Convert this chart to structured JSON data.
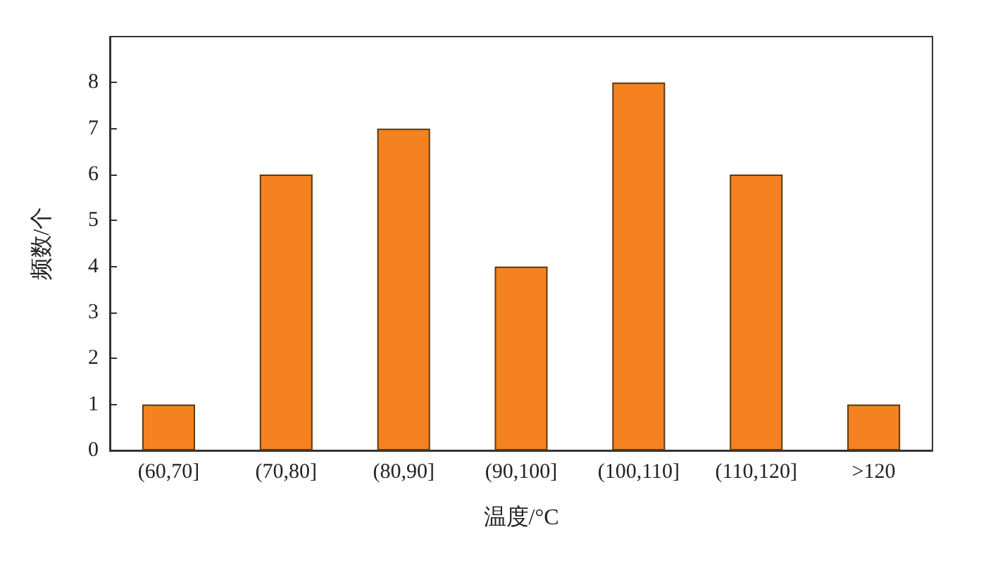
{
  "chart_data": {
    "type": "bar",
    "xlabel": "温度/°C",
    "ylabel": "频数/个",
    "categories": [
      "(60,70]",
      "(70,80]",
      "(80,90]",
      "(90,100]",
      "(100,110]",
      "(110,120]",
      ">120"
    ],
    "values": [
      1,
      6,
      7,
      4,
      8,
      6,
      1
    ],
    "color": "#f58220",
    "ylim": [
      0,
      9
    ],
    "yticks": [
      0,
      1,
      2,
      3,
      4,
      5,
      6,
      7,
      8
    ],
    "grid": false
  }
}
